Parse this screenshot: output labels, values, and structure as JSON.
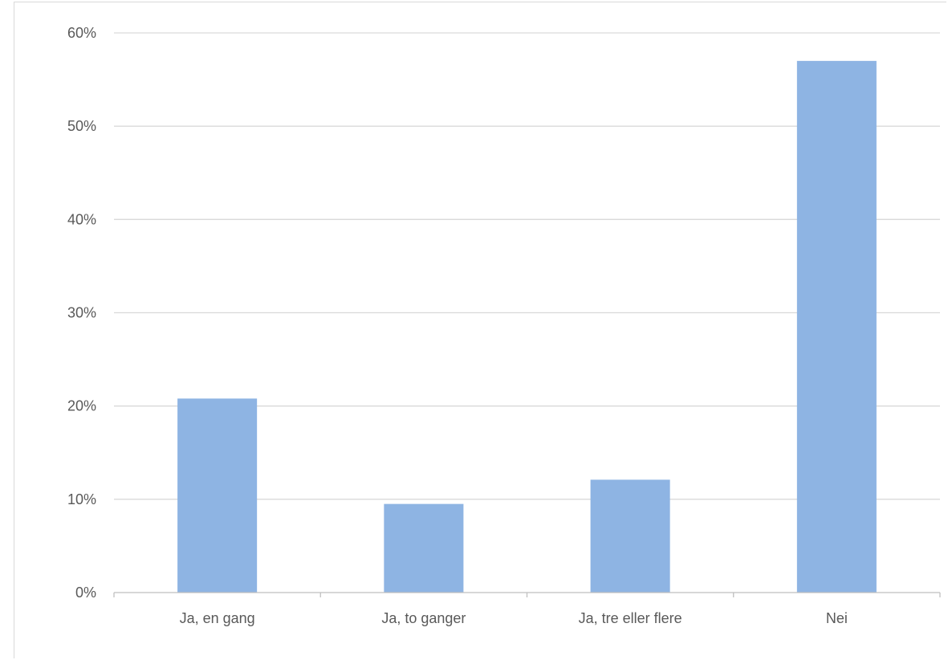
{
  "chart_data": {
    "type": "bar",
    "categories": [
      "Ja, en gang",
      "Ja, to ganger",
      "Ja, tre eller flere",
      "Nei"
    ],
    "values": [
      20.8,
      9.5,
      12.1,
      57.0
    ],
    "title": "",
    "xlabel": "",
    "ylabel": "",
    "ylim": [
      0,
      60
    ],
    "yticks": [
      0,
      10,
      20,
      30,
      40,
      50,
      60
    ],
    "ytick_labels": [
      "0%",
      "10%",
      "20%",
      "30%",
      "40%",
      "50%",
      "60%"
    ],
    "grid": true,
    "legend": "none",
    "colors": {
      "bar": "#8eb4e3",
      "grid": "#d9d9d9",
      "axis": "#bfbfbf",
      "text": "#595959"
    }
  }
}
